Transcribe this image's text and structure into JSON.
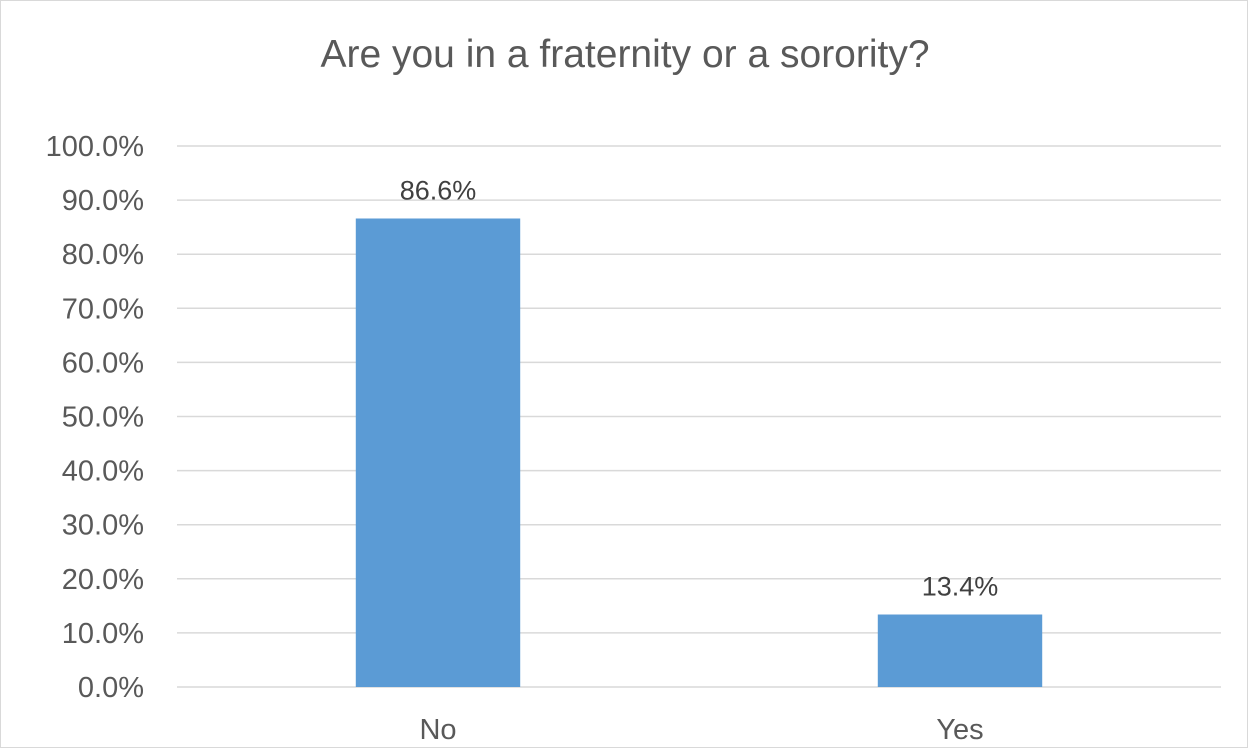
{
  "chart_data": {
    "type": "bar",
    "title": "Are you in a fraternity or a sorority?",
    "xlabel": "",
    "ylabel": "",
    "categories": [
      "No",
      "Yes"
    ],
    "values": [
      86.6,
      13.4
    ],
    "data_labels": [
      "86.6%",
      "13.4%"
    ],
    "ylim": [
      0,
      100
    ],
    "y_ticks": [
      0,
      10,
      20,
      30,
      40,
      50,
      60,
      70,
      80,
      90,
      100
    ],
    "y_tick_labels": [
      "0.0%",
      "10.0%",
      "20.0%",
      "30.0%",
      "40.0%",
      "50.0%",
      "60.0%",
      "70.0%",
      "80.0%",
      "90.0%",
      "100.0%"
    ],
    "grid": true,
    "legend": "none",
    "bar_color": "#5b9bd5"
  }
}
